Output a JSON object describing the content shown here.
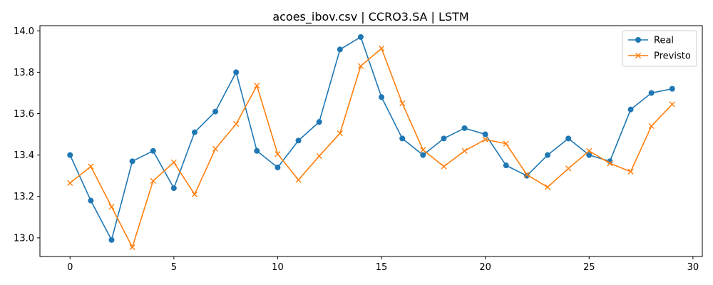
{
  "chart_data": {
    "type": "line",
    "title": "acoes_ibov.csv | CCRO3.SA | LSTM",
    "xlabel": "",
    "ylabel": "",
    "xlim": [
      -1.45,
      30.45
    ],
    "ylim": [
      12.91,
      14.025
    ],
    "x_ticks": [
      0,
      5,
      10,
      15,
      20,
      25,
      30
    ],
    "y_ticks": [
      13.0,
      13.2,
      13.4,
      13.6,
      13.8,
      14.0
    ],
    "y_tick_labels": [
      "13.0",
      "13.2",
      "13.4",
      "13.6",
      "13.8",
      "14.0"
    ],
    "grid": false,
    "legend_position": "top-right",
    "x": [
      0,
      1,
      2,
      3,
      4,
      5,
      6,
      7,
      8,
      9,
      10,
      11,
      12,
      13,
      14,
      15,
      16,
      17,
      18,
      19,
      20,
      21,
      22,
      23,
      24,
      25,
      26,
      27,
      28,
      29
    ],
    "series": [
      {
        "name": "Real",
        "color": "#1f77b4",
        "marker": "circle",
        "values": [
          13.4,
          13.18,
          12.99,
          13.37,
          13.42,
          13.24,
          13.51,
          13.61,
          13.8,
          13.42,
          13.34,
          13.47,
          13.56,
          13.91,
          13.97,
          13.68,
          13.48,
          13.4,
          13.48,
          13.53,
          13.5,
          13.35,
          13.3,
          13.4,
          13.48,
          13.4,
          13.37,
          13.62,
          13.7,
          13.72
        ]
      },
      {
        "name": "Previsto",
        "color": "#ff7f0e",
        "marker": "x",
        "values": [
          13.265,
          13.345,
          13.15,
          12.955,
          13.275,
          13.365,
          13.21,
          13.43,
          13.55,
          13.735,
          13.405,
          13.28,
          13.395,
          13.505,
          13.83,
          13.915,
          13.65,
          13.425,
          13.345,
          13.42,
          13.475,
          13.455,
          13.305,
          13.245,
          13.335,
          13.42,
          13.36,
          13.32,
          13.54,
          13.645
        ]
      }
    ]
  }
}
